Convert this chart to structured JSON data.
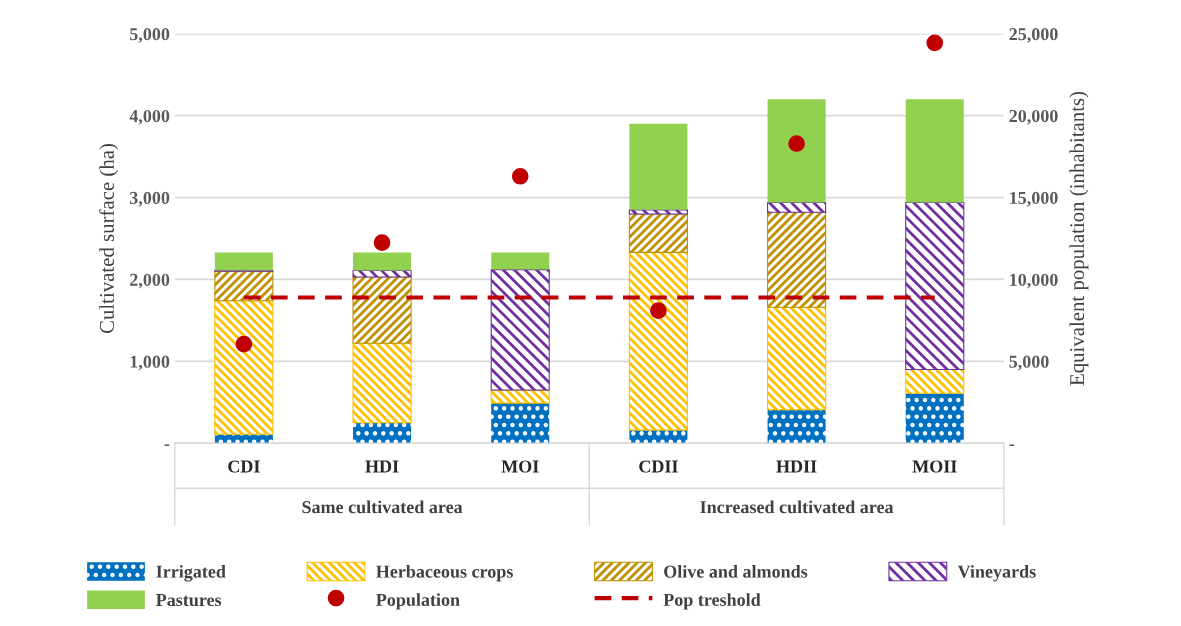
{
  "chart_data": {
    "type": "bar",
    "stacked": true,
    "categories": [
      "CDI",
      "HDI",
      "MOI",
      "CDII",
      "HDII",
      "MOII"
    ],
    "ylabel": "Cultivated surface (ha)",
    "y2label": "Equivalent population (inhabitants)",
    "annotations": [
      "Same cultivated area",
      "Increased cultivated area"
    ],
    "ylim": [
      0,
      5000
    ],
    "yticks": [
      {
        "value": 0,
        "label": "-"
      },
      {
        "value": 1000,
        "label": "1,000"
      },
      {
        "value": 2000,
        "label": "2,000"
      },
      {
        "value": 3000,
        "label": "3,000"
      },
      {
        "value": 4000,
        "label": "4,000"
      },
      {
        "value": 5000,
        "label": "5,000"
      }
    ],
    "y2lim": [
      0,
      25000
    ],
    "y2ticks": [
      {
        "value": 0,
        "label": "-"
      },
      {
        "value": 5000,
        "label": "5,000"
      },
      {
        "value": 10000,
        "label": "10,000"
      },
      {
        "value": 15000,
        "label": "15,000"
      },
      {
        "value": 20000,
        "label": "20,000"
      },
      {
        "value": 25000,
        "label": "25,000"
      }
    ],
    "grid": "y",
    "legend": "bottom",
    "series": [
      {
        "name": "Irrigated",
        "color": "#0070c0",
        "values": [
          110,
          250,
          490,
          160,
          410,
          610
        ]
      },
      {
        "name": "Herbaceous crops",
        "color": "#ffc000",
        "values": [
          1630,
          970,
          160,
          2170,
          1250,
          290
        ]
      },
      {
        "name": "Olive and almonds",
        "color": "#bf9000",
        "values": [
          360,
          810,
          0,
          470,
          1160,
          0
        ]
      },
      {
        "name": "Vineyards",
        "color": "#7030a0",
        "values": [
          10,
          80,
          1470,
          50,
          120,
          2040
        ]
      },
      {
        "name": "Pastures",
        "color": "#92d050",
        "values": [
          220,
          220,
          210,
          1050,
          1260,
          1260
        ]
      },
      {
        "name": "Population",
        "type": "scatter",
        "axis": "y2",
        "marker": "circle",
        "color": "#c00000",
        "values": [
          6050,
          12250,
          16300,
          8100,
          18300,
          24450
        ]
      },
      {
        "name": "Pop treshold",
        "type": "line",
        "axis": "y2",
        "line_style": "dashed",
        "color": "#c00000",
        "values": [
          8900,
          8900,
          8900,
          8900,
          8900,
          8900
        ]
      }
    ]
  }
}
